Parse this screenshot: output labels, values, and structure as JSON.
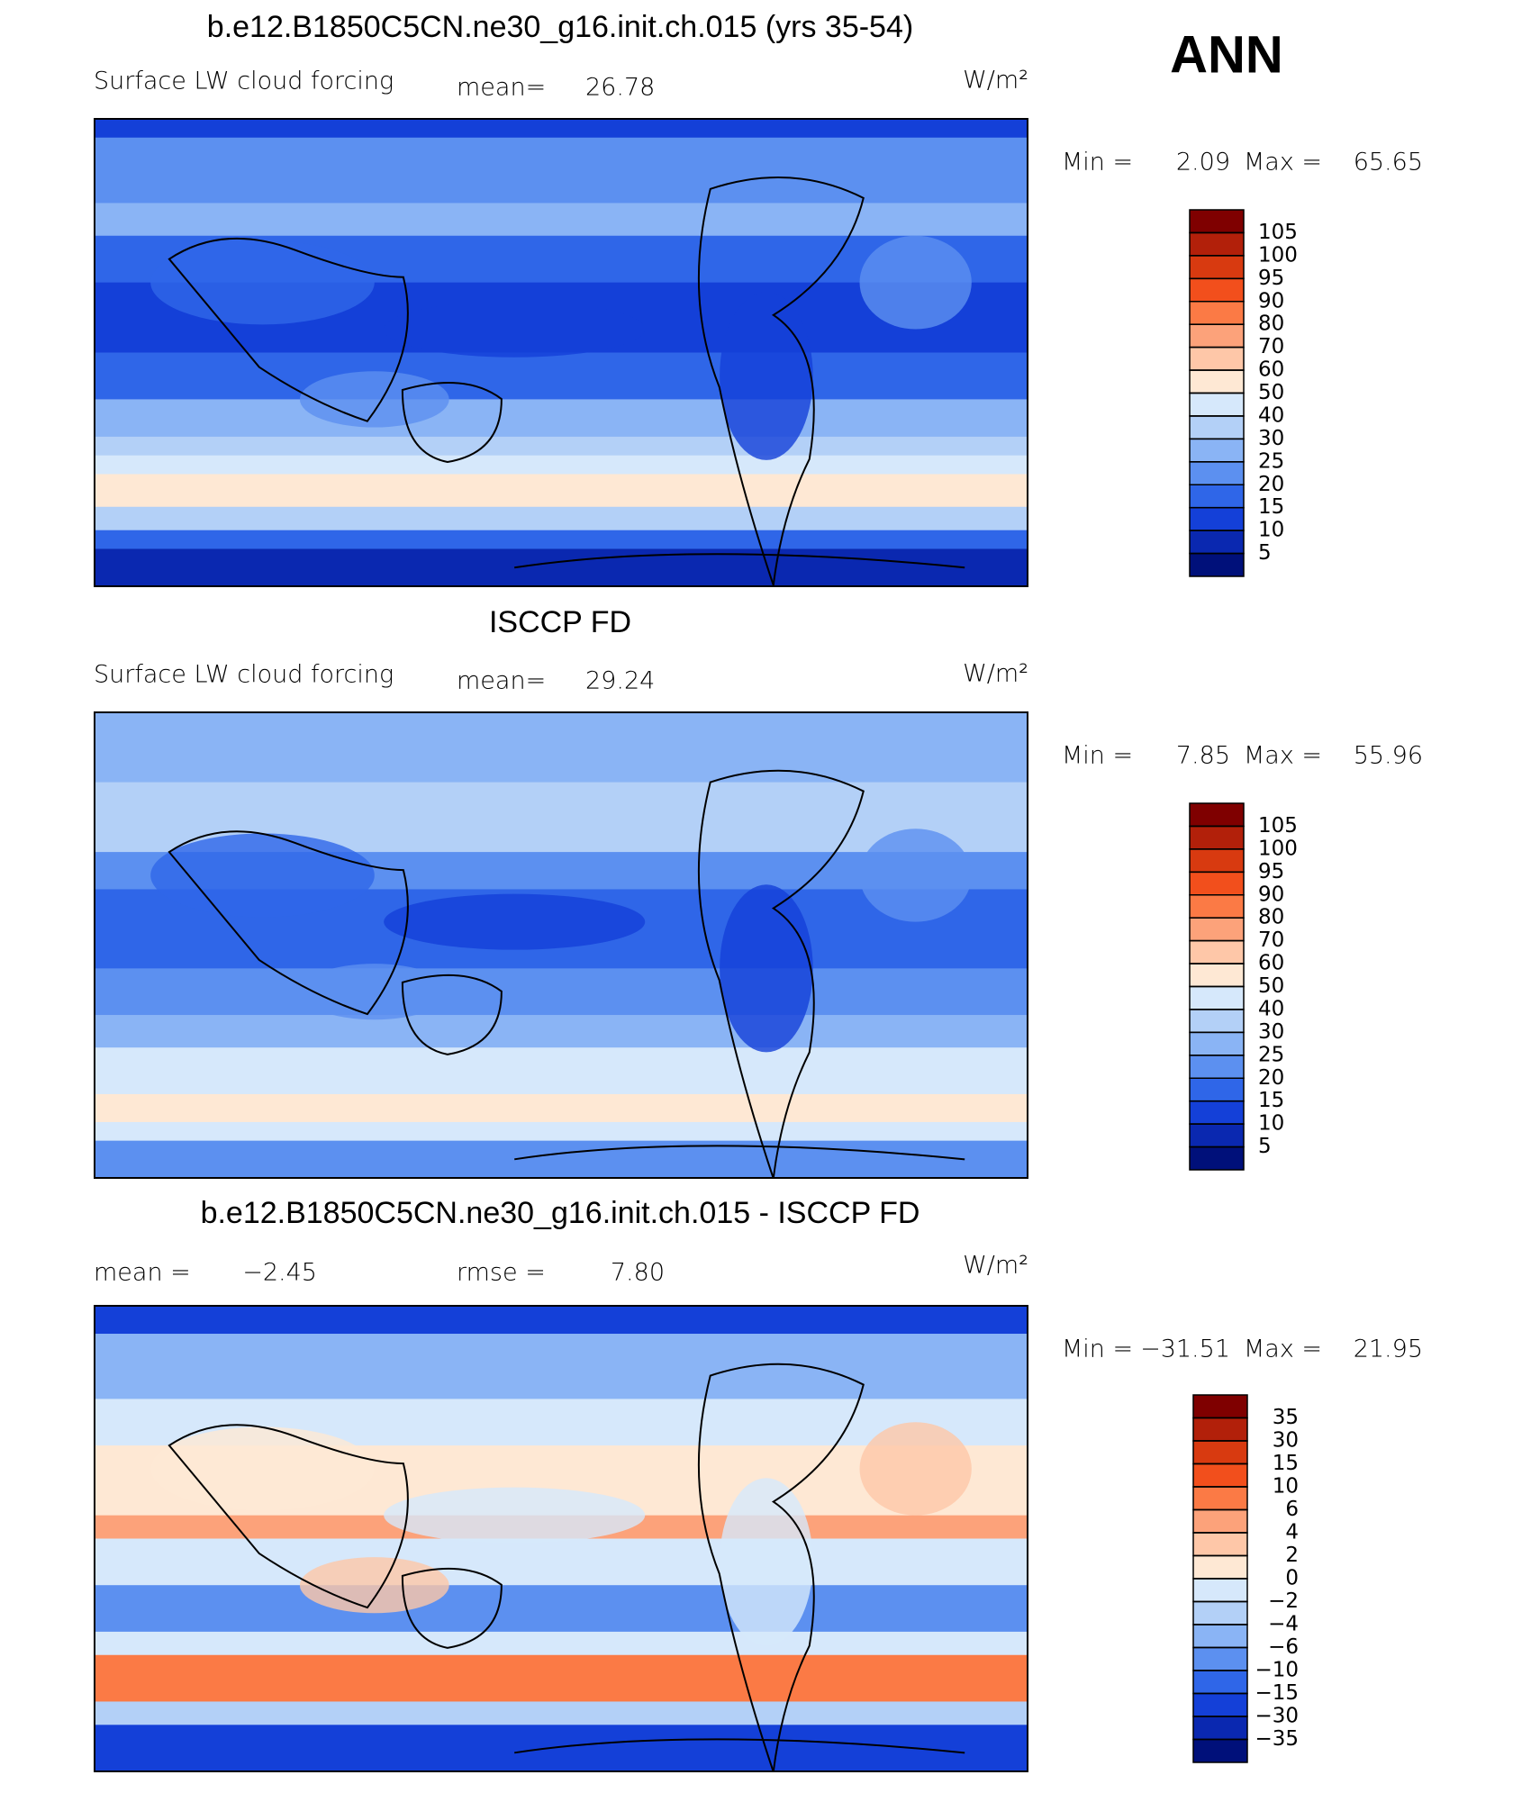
{
  "header": {
    "label": "ANN"
  },
  "panels": [
    {
      "title": "b.e12.B1850C5CN.ne30_g16.init.ch.015 (yrs 35-54)",
      "variable": "Surface LW cloud forcing",
      "mean_label": "mean=",
      "mean": 26.78,
      "units": "W/m²",
      "min_label": "Min =",
      "min": 2.09,
      "max_label": "Max =",
      "max": 65.65,
      "levels": [
        105,
        100,
        95,
        90,
        80,
        70,
        60,
        50,
        40,
        30,
        25,
        20,
        15,
        10,
        5
      ],
      "colors": [
        "#7f0000",
        "#b2200a",
        "#d83a10",
        "#f24f1c",
        "#fb7a45",
        "#fca27a",
        "#fec7a8",
        "#fee8d4",
        "#d6e8fb",
        "#b3d0f7",
        "#8ab4f5",
        "#5c90f0",
        "#2f66e8",
        "#1440d8",
        "#0a28b0",
        "#00107a"
      ]
    },
    {
      "title": "ISCCP FD",
      "variable": "Surface LW cloud forcing",
      "mean_label": "mean=",
      "mean": 29.24,
      "units": "W/m²",
      "min_label": "Min =",
      "min": 7.85,
      "max_label": "Max =",
      "max": 55.96,
      "levels": [
        105,
        100,
        95,
        90,
        80,
        70,
        60,
        50,
        40,
        30,
        25,
        20,
        15,
        10,
        5
      ],
      "colors": [
        "#7f0000",
        "#b2200a",
        "#d83a10",
        "#f24f1c",
        "#fb7a45",
        "#fca27a",
        "#fec7a8",
        "#fee8d4",
        "#d6e8fb",
        "#b3d0f7",
        "#8ab4f5",
        "#5c90f0",
        "#2f66e8",
        "#1440d8",
        "#0a28b0",
        "#00107a"
      ]
    },
    {
      "title": "b.e12.B1850C5CN.ne30_g16.init.ch.015 - ISCCP FD",
      "mean_label": "mean =",
      "mean": {
        "value": -2.45,
        "label": "−2.45"
      },
      "rmse_label": "rmse =",
      "rmse": {
        "value": 7.8,
        "label": "7.80"
      },
      "units": "W/m²",
      "min_label": "Min =",
      "min": {
        "value": -31.51,
        "label": "−31.51"
      },
      "max_label": "Max =",
      "max": 21.95,
      "levels": [
        35,
        30,
        15,
        10,
        6,
        4,
        2,
        0,
        {
          "value": -2,
          "label": "−2"
        },
        {
          "value": -4,
          "label": "−4"
        },
        {
          "value": -6,
          "label": "−6"
        },
        {
          "value": -10,
          "label": "−10"
        },
        {
          "value": -15,
          "label": "−15"
        },
        {
          "value": -30,
          "label": "−30"
        },
        {
          "value": -35,
          "label": "−35"
        }
      ],
      "colors": [
        "#7f0000",
        "#b2200a",
        "#d83a10",
        "#f24f1c",
        "#fb7a45",
        "#fca27a",
        "#fec7a8",
        "#fee8d4",
        "#d6e8fb",
        "#b3d0f7",
        "#8ab4f5",
        "#5c90f0",
        "#2f66e8",
        "#1440d8",
        "#0a28b0",
        "#00107a"
      ]
    }
  ]
}
